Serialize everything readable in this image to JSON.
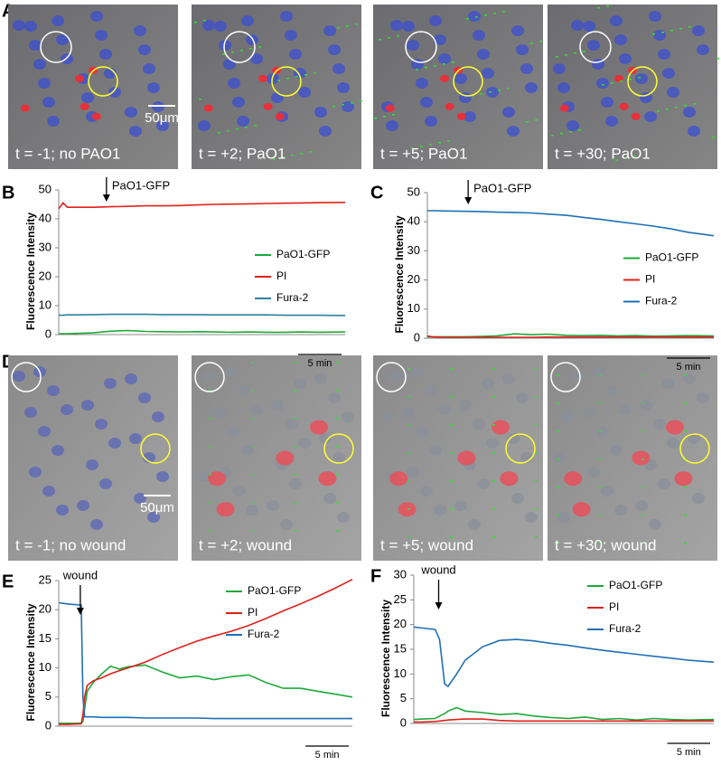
{
  "figure": {
    "panel_a": {
      "label": "A",
      "images": [
        "t = -1; no PAO1",
        "t = +2; PaO1",
        "t = +5; PaO1",
        "t = +30; PaO1"
      ],
      "scale_bar_label": "50μm"
    },
    "panel_d": {
      "label": "D",
      "images": [
        "t = -1; no wound",
        "t = +2; wound",
        "t = +5; wound",
        "t = +30; wound"
      ],
      "scale_bar_label": "50μm"
    }
  },
  "chart_data": [
    {
      "type": "line",
      "panel_label": "B",
      "y_label": "Fluorescence Intensity",
      "legend": "center-right",
      "annotation": {
        "text": "PaO1-GFP",
        "x": 5.5
      },
      "scale_bar": {
        "value": 5,
        "label": "5 min"
      },
      "xlim": [
        0,
        33
      ],
      "ylim": [
        0,
        50
      ],
      "yticks": [
        0,
        10,
        20,
        30,
        40,
        50
      ],
      "x": [
        0,
        0.5,
        1,
        2,
        4,
        6,
        8,
        10,
        12,
        14,
        16,
        18,
        20,
        22,
        24,
        26,
        28,
        30,
        33
      ],
      "series": [
        {
          "name": "PaO1-GFP",
          "color": "#1fa83a",
          "values": [
            0.3,
            0.3,
            0.3,
            0.4,
            0.6,
            1.2,
            1.4,
            1.1,
            1,
            0.9,
            1,
            0.9,
            0.8,
            0.9,
            0.8,
            0.8,
            0.9,
            0.8,
            0.9
          ]
        },
        {
          "name": "PI",
          "color": "#e0201b",
          "values": [
            43.5,
            45.5,
            44,
            44,
            44,
            44.2,
            44.3,
            44.5,
            44.5,
            44.6,
            44.8,
            45,
            45.1,
            45.2,
            45.3,
            45.4,
            45.5,
            45.6,
            45.7
          ]
        },
        {
          "name": "Fura-2",
          "color": "#2f7f9e",
          "values": [
            6.7,
            6.7,
            6.8,
            6.8,
            6.9,
            7,
            7,
            7,
            6.9,
            6.9,
            6.9,
            6.8,
            6.8,
            6.8,
            6.8,
            6.7,
            6.7,
            6.7,
            6.6
          ]
        }
      ]
    },
    {
      "type": "line",
      "panel_label": "C",
      "y_label": "Fluorescence Intensity",
      "legend": "center-right",
      "annotation": {
        "text": "PaO1-GFP",
        "x": 4.7
      },
      "scale_bar": {
        "value": 5,
        "label": "5 min"
      },
      "xlim": [
        0,
        33
      ],
      "ylim": [
        0,
        50
      ],
      "yticks": [
        0,
        10,
        20,
        30,
        40,
        50
      ],
      "x": [
        0,
        0.5,
        1,
        2,
        4,
        6,
        8,
        10,
        12,
        14,
        16,
        18,
        20,
        22,
        24,
        26,
        28,
        30,
        33
      ],
      "series": [
        {
          "name": "PaO1-GFP",
          "color": "#1fa83a",
          "values": [
            0.5,
            0.5,
            0.5,
            0.5,
            0.5,
            0.6,
            0.8,
            1.5,
            1.2,
            1.4,
            1,
            0.9,
            1,
            0.8,
            0.9,
            0.7,
            0.8,
            0.9,
            0.8
          ]
        },
        {
          "name": "PI",
          "color": "#e0201b",
          "values": [
            0.8,
            0.5,
            0.4,
            0.3,
            0.3,
            0.3,
            0.3,
            0.3,
            0.3,
            0.4,
            0.4,
            0.4,
            0.4,
            0.4,
            0.4,
            0.4,
            0.4,
            0.4,
            0.4
          ]
        },
        {
          "name": "Fura-2",
          "color": "#1f6fb4",
          "values": [
            43.8,
            43.8,
            43.8,
            43.7,
            43.6,
            43.5,
            43.3,
            43.2,
            43,
            42.6,
            42.2,
            41.5,
            40.8,
            40,
            39.3,
            38.5,
            37.6,
            36.4,
            35.2
          ]
        }
      ]
    },
    {
      "type": "line",
      "panel_label": "E",
      "y_label": "Fluorescence Intensity",
      "legend": "top-right",
      "annotation": {
        "text": "wound",
        "x": 2.5
      },
      "scale_bar": {
        "value": 5,
        "label": "5 min"
      },
      "xlim": [
        0,
        34
      ],
      "ylim": [
        0,
        25
      ],
      "yticks": [
        0,
        5,
        10,
        15,
        20,
        25
      ],
      "x": [
        0,
        1,
        2.4,
        2.6,
        2.8,
        3,
        3.3,
        4,
        5,
        6,
        7,
        8,
        10,
        12,
        14,
        16,
        18,
        20,
        22,
        24,
        26,
        28,
        30,
        32,
        34
      ],
      "series": [
        {
          "name": "PaO1-GFP",
          "color": "#1fa83a",
          "values": [
            0.5,
            0.5,
            0.5,
            0.5,
            0.8,
            3,
            6,
            7.5,
            9,
            10.3,
            9.8,
            10.2,
            10.5,
            9.3,
            8.3,
            8.6,
            8,
            8.5,
            8.8,
            7.5,
            6.5,
            6.5,
            6,
            5.5,
            5
          ]
        },
        {
          "name": "PI",
          "color": "#e0201b",
          "values": [
            0.3,
            0.3,
            0.4,
            0.4,
            2,
            5,
            7,
            7.8,
            8.3,
            9,
            9.5,
            10,
            11,
            12.3,
            13.5,
            14.6,
            15.5,
            16.3,
            17.3,
            18.5,
            19.8,
            21,
            22.3,
            23.7,
            25.2
          ]
        },
        {
          "name": "Fura-2",
          "color": "#1f6fb4",
          "values": [
            21.2,
            21,
            20.8,
            20.8,
            5,
            1.6,
            1.6,
            1.6,
            1.5,
            1.5,
            1.5,
            1.5,
            1.4,
            1.4,
            1.4,
            1.4,
            1.3,
            1.3,
            1.3,
            1.3,
            1.3,
            1.3,
            1.3,
            1.3,
            1.3
          ]
        }
      ]
    },
    {
      "type": "line",
      "panel_label": "F",
      "y_label": "Fluorescence Intensity",
      "legend": "top-right",
      "annotation": {
        "text": "wound",
        "x": 2.9
      },
      "scale_bar": {
        "value": 5,
        "label": "5 min"
      },
      "xlim": [
        0,
        35
      ],
      "ylim": [
        0,
        30
      ],
      "yticks": [
        0,
        5,
        10,
        15,
        20,
        25,
        30
      ],
      "x": [
        0,
        1,
        2.5,
        3,
        3.6,
        4,
        5,
        6,
        8,
        10,
        12,
        14,
        16,
        18,
        20,
        22,
        24,
        26,
        28,
        30,
        32,
        35
      ],
      "series": [
        {
          "name": "PaO1-GFP",
          "color": "#1fa83a",
          "values": [
            0.8,
            0.9,
            1,
            1.5,
            2,
            2.5,
            3.2,
            2.5,
            2.2,
            1.8,
            2,
            1.5,
            1.2,
            1,
            1.3,
            0.8,
            1,
            0.7,
            1,
            0.8,
            0.7,
            0.8
          ]
        },
        {
          "name": "PI",
          "color": "#e0201b",
          "values": [
            0.3,
            0.3,
            0.4,
            0.5,
            0.6,
            0.7,
            0.8,
            0.9,
            0.9,
            0.6,
            0.5,
            0.5,
            0.5,
            0.5,
            0.5,
            0.5,
            0.5,
            0.5,
            0.5,
            0.5,
            0.5,
            0.5
          ]
        },
        {
          "name": "Fura-2",
          "color": "#1f6fb4",
          "values": [
            19.5,
            19.3,
            19,
            17,
            8,
            7.5,
            10,
            12.8,
            15.5,
            16.8,
            17,
            16.7,
            16.2,
            15.8,
            15.3,
            14.8,
            14.4,
            14,
            13.6,
            13.2,
            12.8,
            12.4
          ]
        }
      ]
    }
  ]
}
